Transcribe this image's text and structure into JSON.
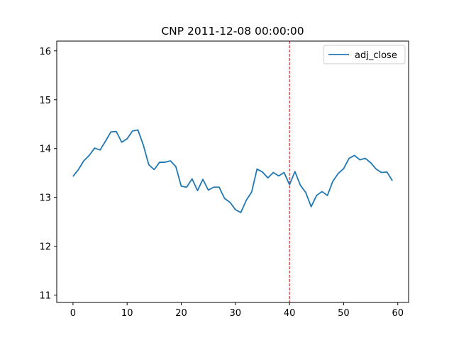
{
  "chart_data": {
    "type": "line",
    "title": "CNP 2011-12-08 00:00:00",
    "xlabel": "",
    "ylabel": "",
    "xlim": [
      -3,
      62
    ],
    "ylim": [
      10.85,
      16.2
    ],
    "xticks": [
      0,
      10,
      20,
      30,
      40,
      50,
      60
    ],
    "yticks": [
      11,
      12,
      13,
      14,
      15,
      16
    ],
    "grid": false,
    "legend_placement": "top-right",
    "vline": {
      "x": 40,
      "color": "#d62728",
      "style": "dashed"
    },
    "series": [
      {
        "name": "adj_close",
        "color": "#1f77b4",
        "x": [
          0,
          1,
          2,
          3,
          4,
          5,
          6,
          7,
          8,
          9,
          10,
          11,
          12,
          13,
          14,
          15,
          16,
          17,
          18,
          19,
          20,
          21,
          22,
          23,
          24,
          25,
          26,
          27,
          28,
          29,
          30,
          31,
          32,
          33,
          34,
          35,
          36,
          37,
          38,
          39,
          40,
          41,
          42,
          43,
          44,
          45,
          46,
          47,
          48,
          49,
          50,
          51,
          52,
          53,
          54,
          55,
          56,
          57,
          58,
          59
        ],
        "values": [
          13.43,
          13.57,
          13.75,
          13.86,
          14.01,
          13.97,
          14.15,
          14.34,
          14.35,
          14.13,
          14.2,
          14.36,
          14.38,
          14.07,
          13.67,
          13.57,
          13.72,
          13.72,
          13.75,
          13.63,
          13.23,
          13.21,
          13.38,
          13.14,
          13.37,
          13.15,
          13.21,
          13.21,
          12.98,
          12.9,
          12.75,
          12.69,
          12.94,
          13.11,
          13.58,
          13.52,
          13.4,
          13.51,
          13.44,
          13.51,
          13.26,
          13.53,
          13.25,
          13.1,
          12.81,
          13.04,
          13.12,
          13.04,
          13.33,
          13.49,
          13.59,
          13.8,
          13.86,
          13.77,
          13.8,
          13.71,
          13.58,
          13.51,
          13.52,
          13.34
        ]
      }
    ]
  }
}
